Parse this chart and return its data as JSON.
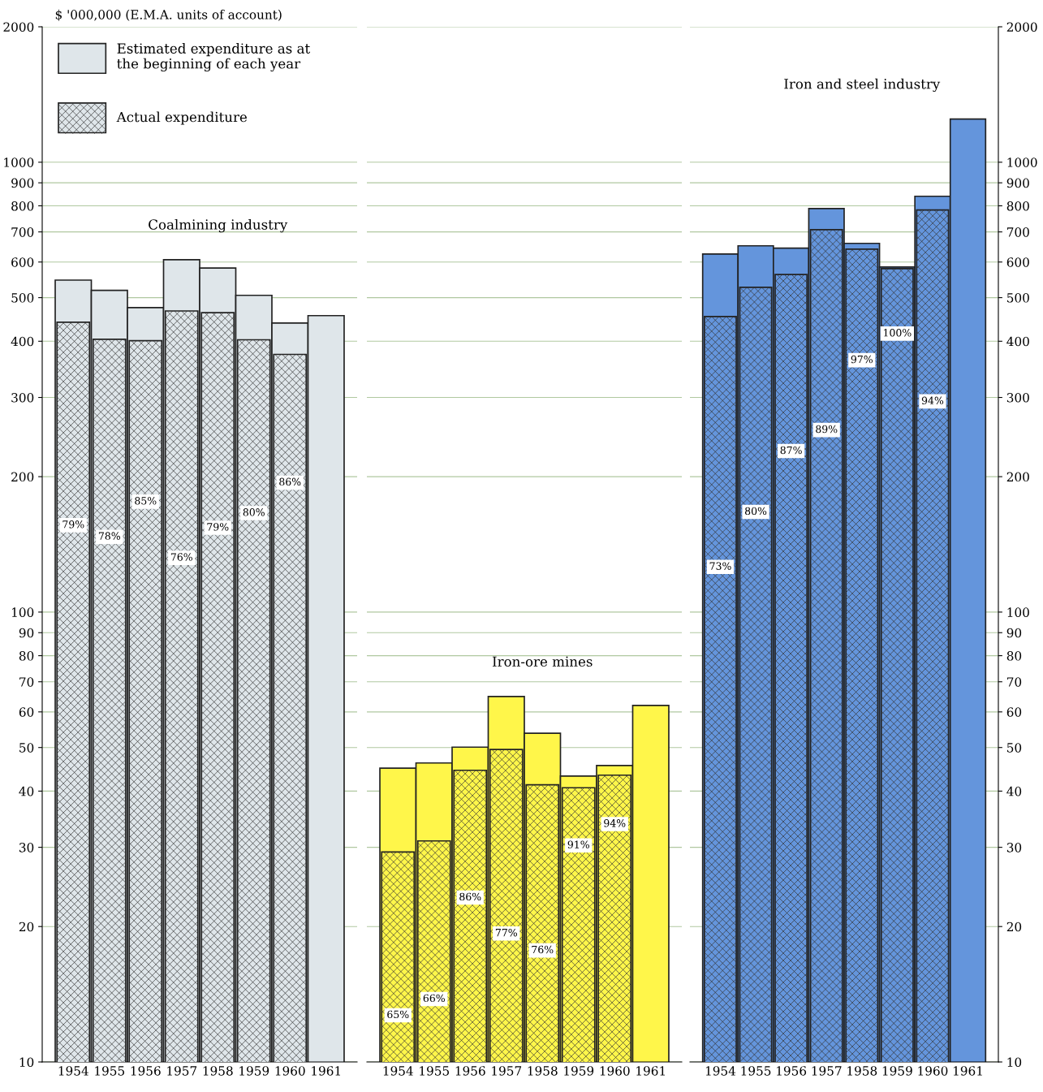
{
  "chart_data": [
    {
      "type": "bar",
      "title": "Coalmining industry",
      "ylabel": "$ '000,000 (E.M.A. units of account)",
      "categories": [
        "1954",
        "1955",
        "1956",
        "1957",
        "1958",
        "1959",
        "1960",
        "1961"
      ],
      "series": [
        {
          "name": "Estimated expenditure as at the beginning of each year",
          "color": "#dfe6ea",
          "values": [
            547,
            519,
            475,
            607,
            582,
            506,
            439,
            456
          ]
        },
        {
          "name": "Actual expenditure",
          "color": "#dfe6ea",
          "values": [
            441,
            404,
            401,
            467,
            463,
            403,
            374,
            null
          ]
        }
      ],
      "annotations": [
        {
          "text": "79%",
          "x": "1954",
          "y": 156
        },
        {
          "text": "78%",
          "x": "1955",
          "y": 147
        },
        {
          "text": "85%",
          "x": "1956",
          "y": 176
        },
        {
          "text": "76%",
          "x": "1957",
          "y": 132
        },
        {
          "text": "79%",
          "x": "1958",
          "y": 154
        },
        {
          "text": "80%",
          "x": "1959",
          "y": 166
        },
        {
          "text": "86%",
          "x": "1960",
          "y": 194
        }
      ],
      "log": "y",
      "ylim": [
        10,
        2000
      ],
      "yticks": [
        10,
        20,
        30,
        40,
        50,
        60,
        70,
        80,
        90,
        100,
        200,
        300,
        400,
        500,
        600,
        700,
        800,
        900,
        1000,
        2000
      ],
      "grid": "y",
      "legend": "top left"
    },
    {
      "type": "bar",
      "title": "Iron-ore mines",
      "categories": [
        "1954",
        "1955",
        "1956",
        "1957",
        "1958",
        "1959",
        "1960",
        "1961"
      ],
      "series": [
        {
          "color": "#fff64a",
          "values": [
            45.0,
            46.2,
            50.1,
            64.9,
            53.8,
            43.2,
            45.6,
            62.0
          ]
        },
        {
          "color": "#fff64a",
          "values": [
            29.3,
            31.0,
            44.5,
            49.5,
            41.3,
            40.7,
            43.4,
            null
          ]
        }
      ],
      "annotations": [
        {
          "text": "65%",
          "x": "1954",
          "y": 12.7
        },
        {
          "text": "66%",
          "x": "1955",
          "y": 13.8
        },
        {
          "text": "86%",
          "x": "1956",
          "y": 23.2
        },
        {
          "text": "77%",
          "x": "1957",
          "y": 19.3
        },
        {
          "text": "76%",
          "x": "1958",
          "y": 17.7
        },
        {
          "text": "91%",
          "x": "1959",
          "y": 30.3
        },
        {
          "text": "94%",
          "x": "1960",
          "y": 33.8
        }
      ],
      "log": "y",
      "ylim": [
        10,
        2000
      ],
      "yticks": [
        10,
        20,
        30,
        40,
        50,
        60,
        70,
        80,
        90,
        100,
        200,
        300,
        400,
        500,
        600,
        700,
        800,
        900,
        1000,
        2000
      ],
      "grid": "y",
      "tick_labels": "x"
    },
    {
      "type": "bar",
      "title": "Iron and steel industry",
      "categories": [
        "1954",
        "1955",
        "1956",
        "1957",
        "1958",
        "1959",
        "1960",
        "1961"
      ],
      "series": [
        {
          "color": "#6495dc",
          "values": [
            625,
            652,
            644,
            789,
            660,
            585,
            840,
            1247
          ]
        },
        {
          "color": "#6495dc",
          "values": [
            454,
            527,
            563,
            708,
            641,
            580,
            783,
            null
          ]
        }
      ],
      "annotations": [
        {
          "text": "73%",
          "x": "1954",
          "y": 126
        },
        {
          "text": "80%",
          "x": "1955",
          "y": 167
        },
        {
          "text": "87%",
          "x": "1956",
          "y": 228
        },
        {
          "text": "89%",
          "x": "1957",
          "y": 254
        },
        {
          "text": "97%",
          "x": "1958",
          "y": 363
        },
        {
          "text": "100%",
          "x": "1959",
          "y": 416
        },
        {
          "text": "94%",
          "x": "1960",
          "y": 294
        }
      ],
      "log": "y",
      "ylim": [
        10,
        2000
      ],
      "yticks": [
        10,
        20,
        30,
        40,
        50,
        60,
        70,
        80,
        90,
        100,
        200,
        300,
        400,
        500,
        600,
        700,
        800,
        900,
        1000,
        2000
      ],
      "grid": "y"
    }
  ]
}
